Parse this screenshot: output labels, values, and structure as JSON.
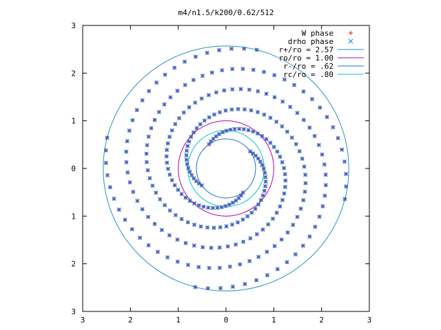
{
  "chart_data": {
    "type": "scatter",
    "title": "m4/n1.5/k200/0.62/512",
    "xlabel": "",
    "ylabel": "",
    "xlim": [
      -3,
      3
    ],
    "ylim": [
      -3,
      3
    ],
    "x_ticks": [
      -3,
      -2,
      -1,
      0,
      1,
      2,
      3
    ],
    "y_ticks": [
      -3,
      -2,
      -1,
      0,
      1,
      2,
      3
    ],
    "x_tick_labels": [
      "3",
      "2",
      "1",
      "0",
      "1",
      "2",
      "3"
    ],
    "y_tick_labels": [
      "3",
      "2",
      "1",
      "0",
      "1",
      "2",
      "3"
    ],
    "grid": false,
    "legend_position": "top-right",
    "series": [
      {
        "name": "W phase",
        "marker": "plus",
        "color": "#ff0000"
      },
      {
        "name": "drho phase",
        "marker": "cross",
        "color": "#0080ff"
      },
      {
        "name": "r+/ro = 2.57",
        "kind": "circle",
        "radius": 2.57,
        "color": "#2a8fbd"
      },
      {
        "name": "ro/ro = 1.00",
        "kind": "circle",
        "radius": 1.0,
        "color": "#b000b0"
      },
      {
        "name": "r-/ro = .62",
        "kind": "circle",
        "radius": 0.62,
        "color": "#1a6fd0"
      },
      {
        "name": "rc/ro = .80",
        "kind": "circle",
        "radius": 0.8,
        "color": "#00c8c8"
      }
    ],
    "spiral_arms": {
      "count": 4,
      "r_inner": 0.62,
      "r_outer": 2.57,
      "start_angles_deg": [
        35,
        125,
        215,
        305
      ],
      "winding_deg_per_unit_r": 210,
      "samples_per_arm": 70
    }
  }
}
